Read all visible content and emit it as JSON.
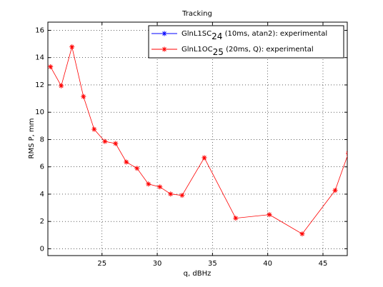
{
  "chart_data": {
    "type": "line",
    "title": "Tracking",
    "x_label": "q, dBHz",
    "y_label": "RMS P, mm",
    "xlim": [
      20.1,
      47.2
    ],
    "xticks": [
      25,
      30,
      35,
      40,
      45
    ],
    "ylim": [
      -0.5,
      16.6
    ],
    "yticks": [
      0,
      2,
      4,
      6,
      8,
      10,
      12,
      14,
      16
    ],
    "grid": true,
    "legend": "upper right",
    "series": [
      {
        "name": "GlnL1SC24 (10ms, atan2): experimental",
        "color": "#0000ff",
        "x": [],
        "values": []
      },
      {
        "name": "GlnL1OC25 (20ms, Q): experimental",
        "color": "#ff0000",
        "x": [
          20.34,
          21.31,
          22.28,
          23.32,
          24.29,
          25.26,
          26.23,
          27.2,
          28.17,
          29.2,
          30.24,
          31.21,
          32.25,
          34.26,
          37.1,
          40.15,
          43.12,
          46.1,
          47.3
        ],
        "values": [
          13.33,
          11.93,
          14.79,
          11.15,
          8.75,
          7.86,
          7.71,
          6.35,
          5.89,
          4.74,
          4.53,
          4.01,
          3.91,
          6.67,
          2.24,
          2.5,
          1.09,
          4.27,
          7.0
        ]
      }
    ]
  }
}
